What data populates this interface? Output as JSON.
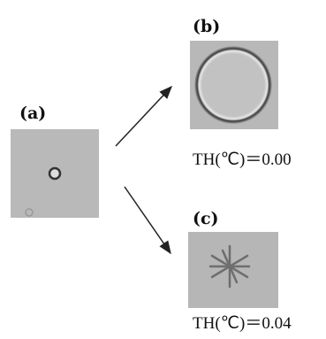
{
  "panels": [
    {
      "label": "(a)"
    },
    {
      "label": "(b)",
      "caption": "TH(℃)＝0.00"
    },
    {
      "label": "(c)",
      "caption": "TH(℃)＝0.04"
    }
  ]
}
